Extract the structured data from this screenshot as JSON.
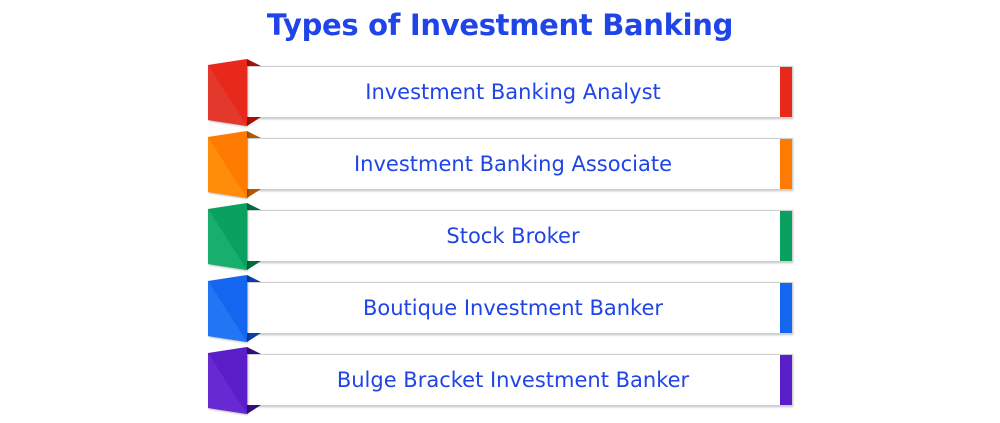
{
  "title": "Types of Investment Banking",
  "items": [
    {
      "label": "Investment Banking Analyst",
      "color": "#e8281a",
      "light": "#e0453a",
      "dark": "#a81008"
    },
    {
      "label": "Investment Banking Associate",
      "color": "#ff7a00",
      "light": "#ff9a10",
      "dark": "#b05a00"
    },
    {
      "label": "Stock Broker",
      "color": "#0aa060",
      "light": "#20b878",
      "dark": "#046a3c"
    },
    {
      "label": "Boutique Investment Banker",
      "color": "#1466f0",
      "light": "#2a80f8",
      "dark": "#0a3fa8"
    },
    {
      "label": "Bulge Bracket Investment Banker",
      "color": "#5a1ec8",
      "light": "#7030d8",
      "dark": "#34107a"
    }
  ]
}
